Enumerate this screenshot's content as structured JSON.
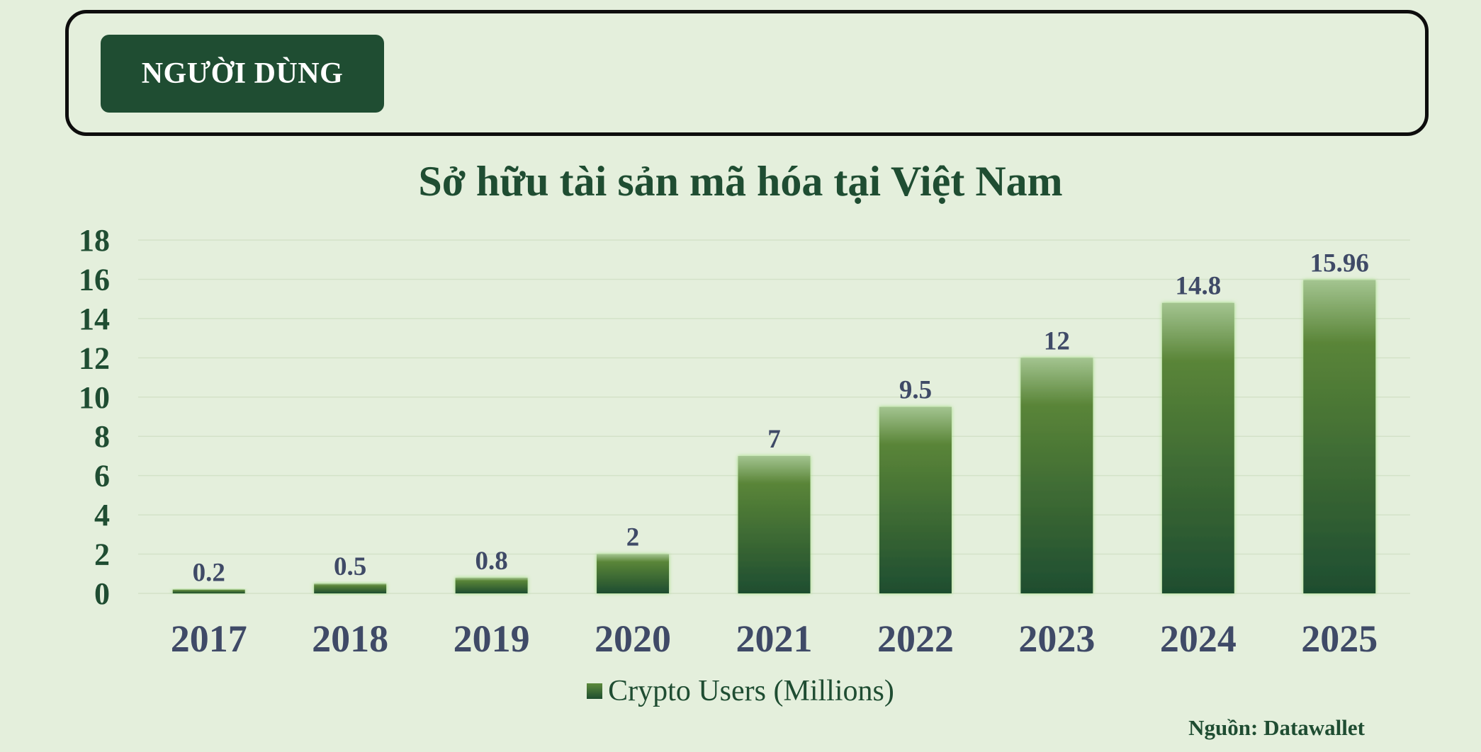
{
  "header": {
    "tag_label": "NGƯỜI DÙNG"
  },
  "footer": {
    "source": "Nguồn: Datawallet"
  },
  "colors": {
    "primary_green": "#1f4d32",
    "label_slate": "#3f4a67",
    "background": "#e4efdc",
    "bar_top": "#a3c490",
    "bar_mid": "#5a8538",
    "bar_bottom": "#1e4d2f"
  },
  "chart_data": {
    "type": "bar",
    "title": "Sở hữu tài sản mã hóa tại Việt Nam",
    "categories": [
      "2017",
      "2018",
      "2019",
      "2020",
      "2021",
      "2022",
      "2023",
      "2024",
      "2025"
    ],
    "series": [
      {
        "name": "Crypto Users (Millions)",
        "values": [
          0.2,
          0.5,
          0.8,
          2,
          7,
          9.5,
          12,
          14.8,
          15.96
        ],
        "labels": [
          "0.2",
          "0.5",
          "0.8",
          "2",
          "7",
          "9.5",
          "12",
          "14.8",
          "15.96"
        ]
      }
    ],
    "ylim": [
      0,
      18
    ],
    "yticks": [
      0,
      2,
      4,
      6,
      8,
      10,
      12,
      14,
      16,
      18
    ],
    "grid": true,
    "legend": "bottom"
  }
}
